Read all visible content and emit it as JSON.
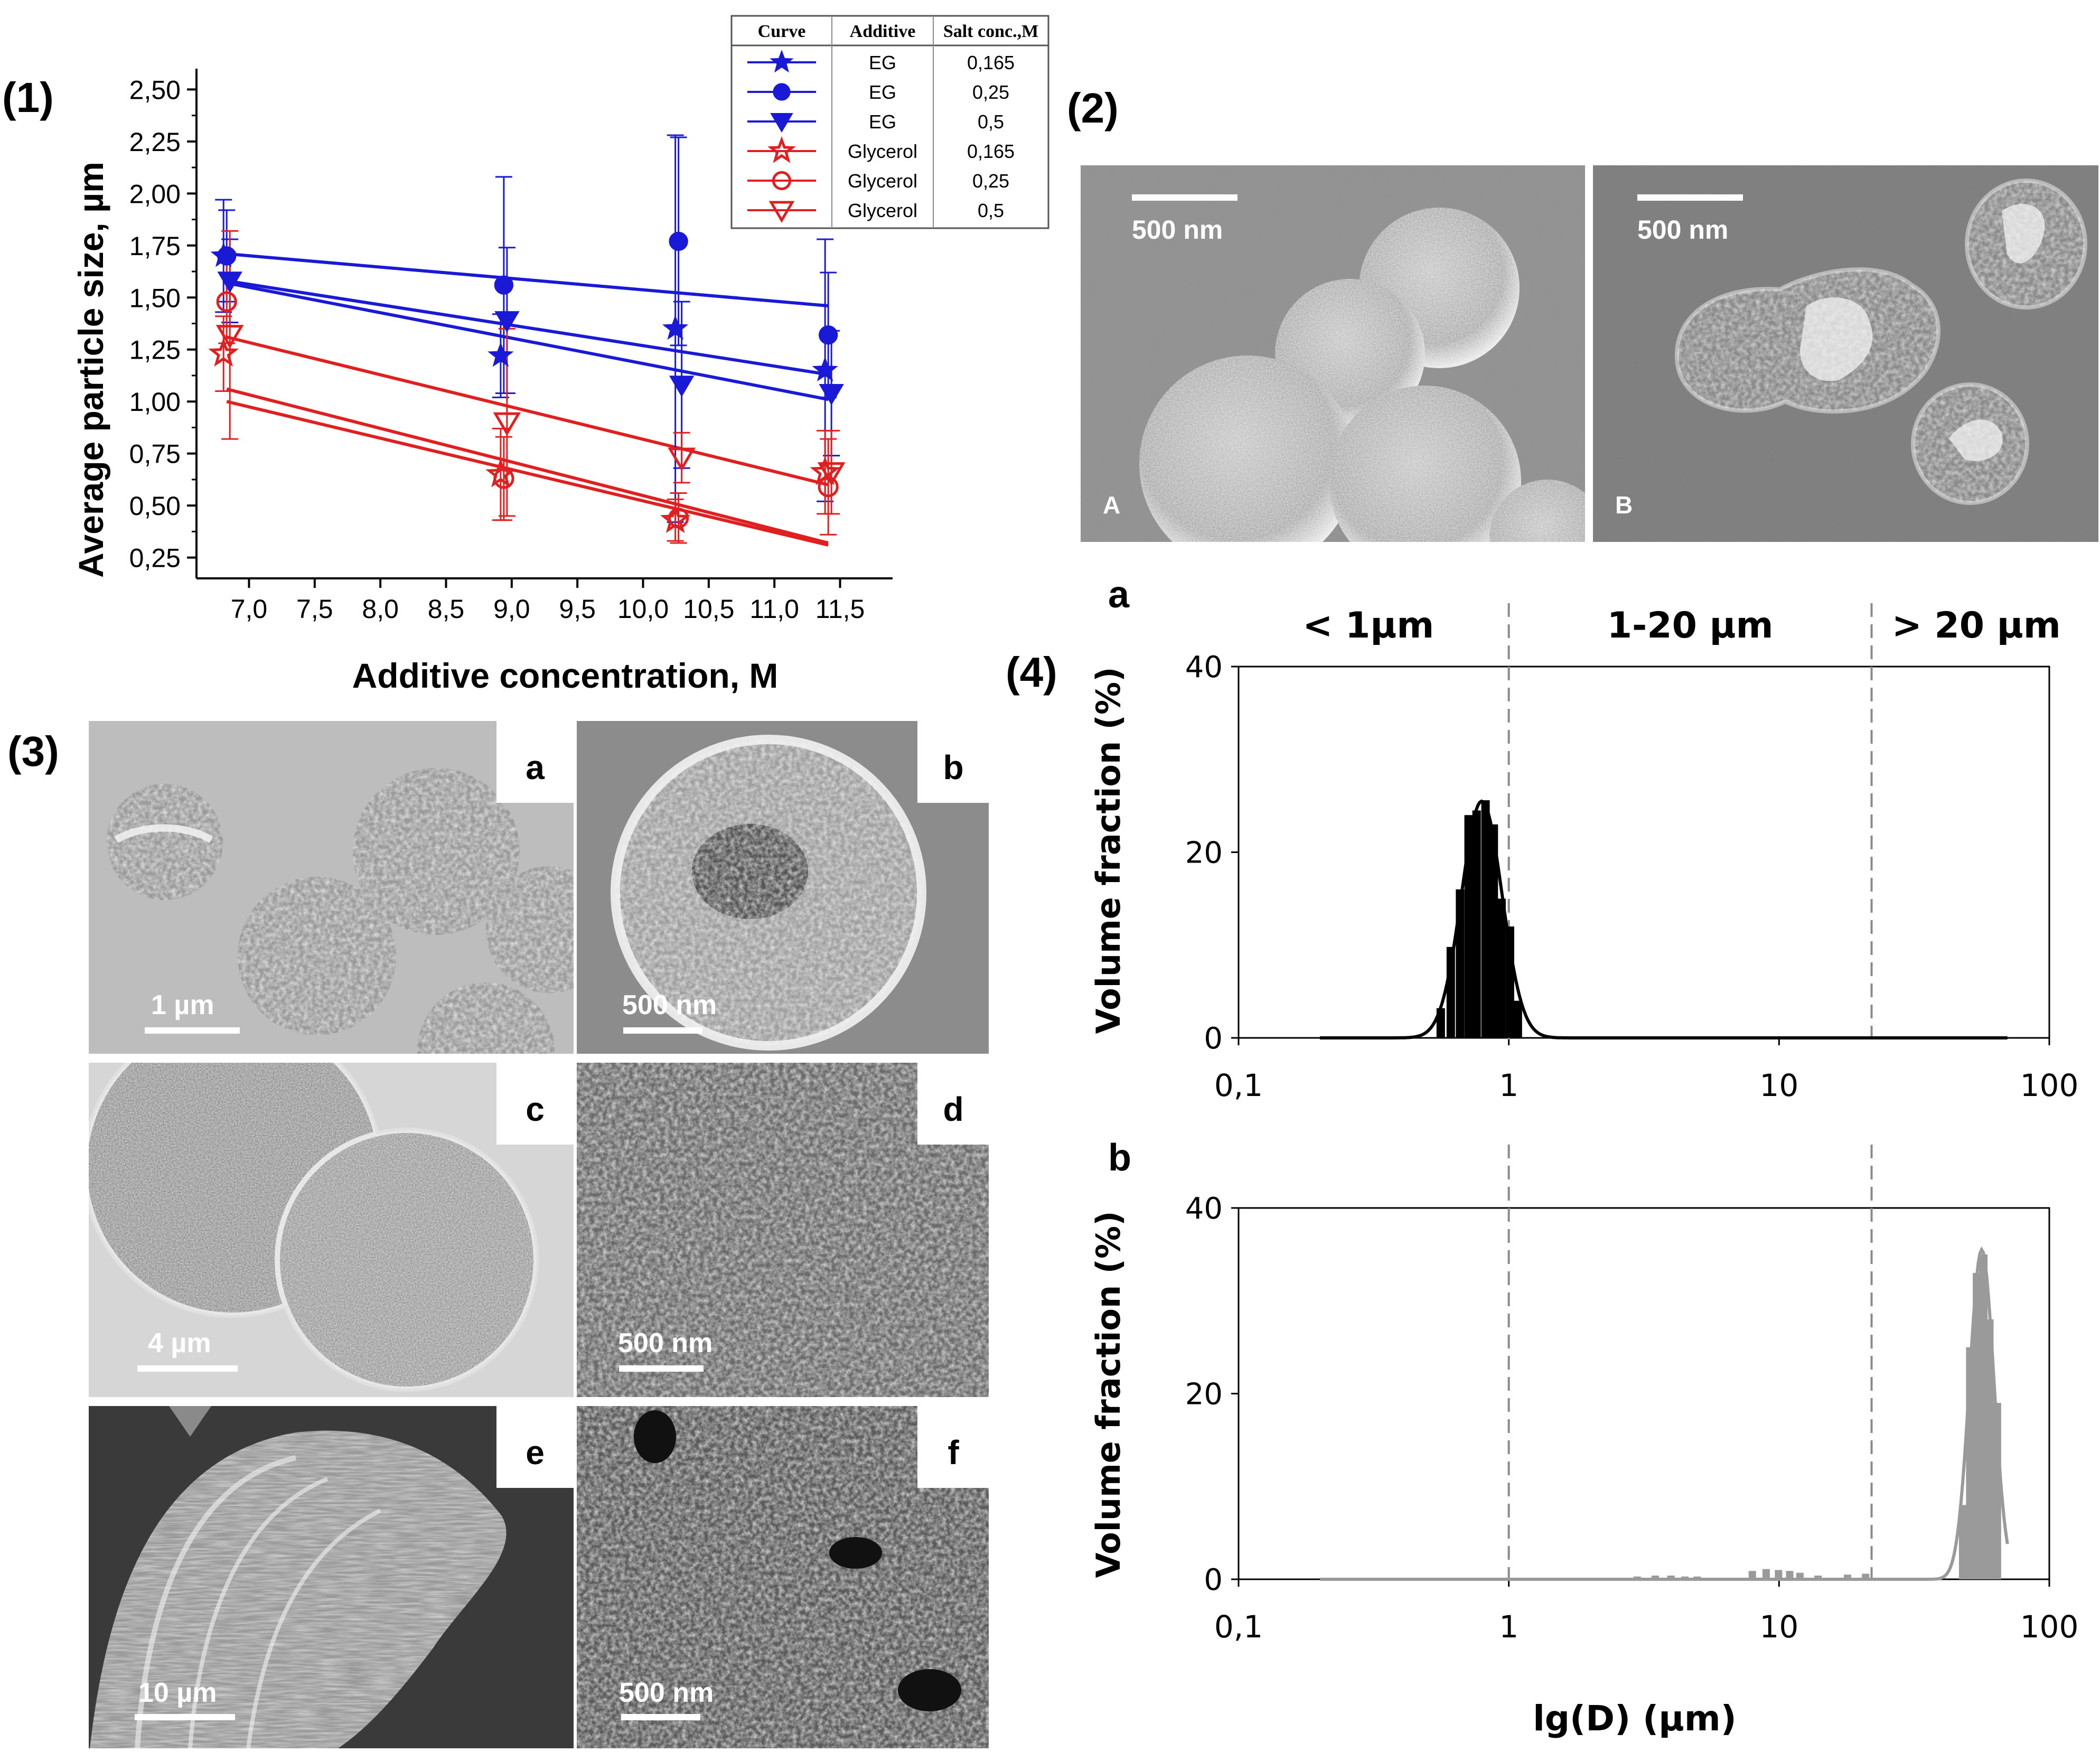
{
  "panels": {
    "p1": "(1)",
    "p2": "(2)",
    "p3": "(3)",
    "p4": "(4)"
  },
  "chart_data": [
    {
      "id": "panel1",
      "type": "scatter",
      "xlabel": "Additive concentration, M",
      "ylabel": "Average particle size, µm",
      "xlim": [
        6.6,
        11.9
      ],
      "ylim": [
        0.15,
        2.6
      ],
      "xticks": [
        7.0,
        7.5,
        8.0,
        8.5,
        9.0,
        9.5,
        10.0,
        10.5,
        11.0,
        11.5
      ],
      "xtick_labels": [
        "7,0",
        "7,5",
        "8,0",
        "8,5",
        "9,0",
        "9,5",
        "10,0",
        "10,5",
        "11,0",
        "11,5"
      ],
      "yticks": [
        0.25,
        0.5,
        0.75,
        1.0,
        1.25,
        1.5,
        1.75,
        2.0,
        2.25,
        2.5
      ],
      "ytick_labels": [
        "0,25",
        "0,50",
        "0,75",
        "1,00",
        "1,25",
        "1,50",
        "1,75",
        "2,00",
        "2,25",
        "2,50"
      ],
      "legend": {
        "headers": [
          "Curve",
          "Additive",
          "Salt conc.,M"
        ],
        "position": "top-right"
      },
      "series": [
        {
          "additive": "EG",
          "salt": "0,165",
          "color": "#1a1ad6",
          "marker": "star",
          "filled": true,
          "x": [
            6.83,
            8.94,
            10.27,
            11.41
          ],
          "y": [
            1.7,
            1.22,
            1.35,
            1.15
          ],
          "err": [
            0.27,
            0.2,
            0.93,
            0.63
          ],
          "fit": [
            1.58,
            1.13
          ]
        },
        {
          "additive": "EG",
          "salt": "0,25",
          "color": "#1a1ad6",
          "marker": "circle",
          "filled": true,
          "x": [
            6.83,
            8.94,
            10.27,
            11.41
          ],
          "y": [
            1.7,
            1.56,
            1.77,
            1.32
          ],
          "err": [
            0.22,
            0.52,
            0.5,
            0.3
          ],
          "fit": [
            1.71,
            1.46
          ]
        },
        {
          "additive": "EG",
          "salt": "0,5",
          "color": "#1a1ad6",
          "marker": "triangle-down",
          "filled": true,
          "x": [
            6.83,
            8.94,
            10.27,
            11.41
          ],
          "y": [
            1.58,
            1.39,
            1.08,
            1.04
          ],
          "err": [
            0.2,
            0.35,
            0.4,
            0.3
          ],
          "fit": [
            1.57,
            1.01
          ]
        },
        {
          "additive": "Glycerol",
          "salt": "0,165",
          "color": "#e02020",
          "marker": "star",
          "filled": false,
          "x": [
            6.83,
            8.94,
            10.27,
            11.41
          ],
          "y": [
            1.23,
            0.65,
            0.43,
            0.66
          ],
          "err": [
            0.18,
            0.22,
            0.1,
            0.2
          ],
          "fit": [
            1.06,
            0.32
          ]
        },
        {
          "additive": "Glycerol",
          "salt": "0,25",
          "color": "#e02020",
          "marker": "circle",
          "filled": false,
          "x": [
            6.83,
            8.94,
            10.27,
            11.41
          ],
          "y": [
            1.48,
            0.63,
            0.44,
            0.59
          ],
          "err": [
            0.2,
            0.2,
            0.12,
            0.23
          ],
          "fit": [
            1.0,
            0.31
          ]
        },
        {
          "additive": "Glycerol",
          "salt": "0,5",
          "color": "#e02020",
          "marker": "triangle-down",
          "filled": false,
          "x": [
            6.83,
            8.94,
            10.27,
            11.41
          ],
          "y": [
            1.32,
            0.9,
            0.73,
            0.66
          ],
          "err": [
            0.5,
            0.45,
            0.12,
            0.2
          ],
          "fit": [
            1.31,
            0.6
          ]
        }
      ]
    },
    {
      "id": "panel4a",
      "type": "bar",
      "title": "a",
      "xlabel": "",
      "ylabel": "Volume fraction (%)",
      "xscale": "log",
      "xlim": [
        0.1,
        100
      ],
      "xtick_labels": [
        "0,1",
        "1",
        "10",
        "100"
      ],
      "ylim": [
        0,
        40
      ],
      "yticks": [
        0,
        20,
        40
      ],
      "regions": [
        "< 1µm",
        "1-20 µm",
        "> 20 µm"
      ],
      "dividers": [
        1,
        22
      ],
      "bars": {
        "x": [
          0.56,
          0.61,
          0.66,
          0.71,
          0.76,
          0.82,
          0.88,
          0.94,
          1.01,
          1.08
        ],
        "y": [
          3.2,
          9.8,
          16,
          24,
          24.5,
          25.6,
          23,
          15,
          12,
          4
        ]
      },
      "curve": {
        "mu_log10": -0.1,
        "sigma_log10": 0.075,
        "peak": 25.5,
        "x_range": [
          0.2,
          70
        ]
      },
      "color": "#000000"
    },
    {
      "id": "panel4b",
      "type": "bar",
      "title": "b",
      "xlabel": "lg(D) (µm)",
      "ylabel": "Volume fraction (%)",
      "xscale": "log",
      "xlim": [
        0.1,
        100
      ],
      "xtick_labels": [
        "0,1",
        "1",
        "10",
        "100"
      ],
      "ylim": [
        0,
        40
      ],
      "yticks": [
        0,
        20,
        40
      ],
      "dividers": [
        1,
        22
      ],
      "bars": {
        "x": [
          48,
          51,
          54,
          57,
          60,
          64
        ],
        "y": [
          8,
          25,
          33,
          35,
          28,
          19
        ]
      },
      "small_bars": {
        "x": [
          3,
          3.5,
          4,
          4.5,
          5,
          8,
          9,
          10,
          11,
          12,
          14,
          18,
          21
        ],
        "y": [
          0.3,
          0.4,
          0.4,
          0.3,
          0.3,
          0.9,
          1.1,
          1.0,
          0.9,
          0.7,
          0.4,
          0.5,
          0.6
        ]
      },
      "curve": {
        "mu_log10": 1.75,
        "sigma_log10": 0.045,
        "peak": 35.5,
        "x_range": [
          0.2,
          70
        ]
      },
      "color": "#9a9a9a"
    }
  ],
  "sem2": {
    "scale_A": "500 nm",
    "scale_B": "500 nm",
    "label_A": "A",
    "label_B": "B"
  },
  "sem3": {
    "a": {
      "letter": "a",
      "scale": "1 µm"
    },
    "b": {
      "letter": "b",
      "scale": "500 nm"
    },
    "c": {
      "letter": "c",
      "scale": "4 µm"
    },
    "d": {
      "letter": "d",
      "scale": "500 nm"
    },
    "e": {
      "letter": "e",
      "scale": "10 µm"
    },
    "f": {
      "letter": "f",
      "scale": "500 nm"
    }
  }
}
